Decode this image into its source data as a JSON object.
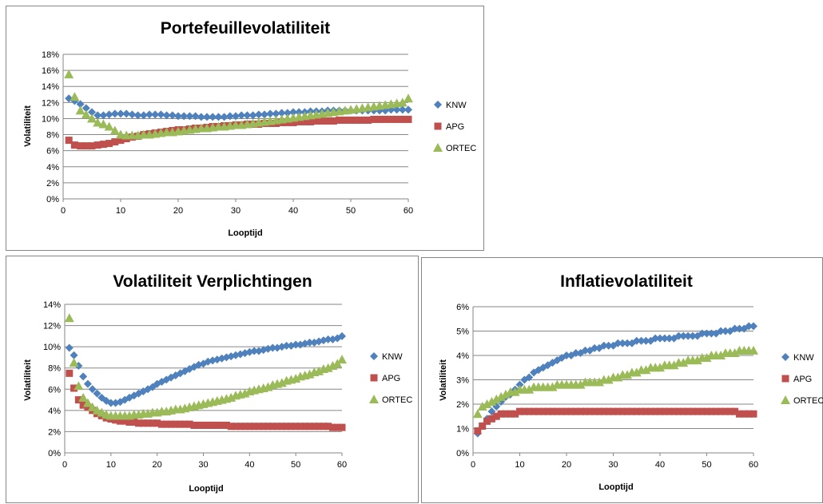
{
  "chart_data": [
    {
      "type": "scatter",
      "title": "Portefeuillevolatiliteit",
      "xlabel": "Looptijd",
      "ylabel": "Volatiliteit",
      "xlim": [
        0,
        60
      ],
      "ylim": [
        0,
        0.18
      ],
      "xticks": [
        "0",
        "10",
        "20",
        "30",
        "40",
        "50",
        "60"
      ],
      "yticks": [
        "0%",
        "2%",
        "4%",
        "6%",
        "8%",
        "10%",
        "12%",
        "14%",
        "16%",
        "18%"
      ],
      "grid": "horizontal",
      "legend_position": "right",
      "series": [
        {
          "name": "KNW",
          "color": "#4f81bd",
          "marker": "diamond",
          "values": [
            0.125,
            0.122,
            0.118,
            0.113,
            0.108,
            0.104,
            0.104,
            0.105,
            0.106,
            0.106,
            0.106,
            0.105,
            0.104,
            0.104,
            0.105,
            0.105,
            0.105,
            0.104,
            0.104,
            0.103,
            0.103,
            0.103,
            0.103,
            0.102,
            0.102,
            0.102,
            0.102,
            0.102,
            0.103,
            0.103,
            0.104,
            0.104,
            0.104,
            0.105,
            0.105,
            0.106,
            0.106,
            0.107,
            0.107,
            0.108,
            0.108,
            0.108,
            0.109,
            0.109,
            0.109,
            0.11,
            0.11,
            0.11,
            0.11,
            0.11,
            0.11,
            0.11,
            0.11,
            0.11,
            0.11,
            0.11,
            0.111,
            0.111,
            0.111,
            0.111
          ]
        },
        {
          "name": "APG",
          "color": "#c0504d",
          "marker": "square",
          "values": [
            0.073,
            0.067,
            0.066,
            0.066,
            0.066,
            0.067,
            0.068,
            0.069,
            0.071,
            0.073,
            0.075,
            0.077,
            0.078,
            0.08,
            0.081,
            0.082,
            0.083,
            0.084,
            0.085,
            0.086,
            0.086,
            0.087,
            0.088,
            0.088,
            0.089,
            0.09,
            0.09,
            0.091,
            0.091,
            0.092,
            0.092,
            0.093,
            0.093,
            0.093,
            0.094,
            0.094,
            0.094,
            0.095,
            0.095,
            0.095,
            0.096,
            0.096,
            0.096,
            0.097,
            0.097,
            0.097,
            0.097,
            0.098,
            0.098,
            0.098,
            0.098,
            0.098,
            0.098,
            0.099,
            0.099,
            0.099,
            0.099,
            0.099,
            0.099,
            0.099
          ]
        },
        {
          "name": "ORTEC",
          "color": "#9bbb59",
          "marker": "triangle",
          "values": [
            0.155,
            0.127,
            0.11,
            0.105,
            0.1,
            0.095,
            0.093,
            0.09,
            0.085,
            0.08,
            0.079,
            0.079,
            0.079,
            0.08,
            0.08,
            0.081,
            0.082,
            0.083,
            0.083,
            0.084,
            0.085,
            0.086,
            0.087,
            0.088,
            0.088,
            0.089,
            0.09,
            0.09,
            0.091,
            0.092,
            0.092,
            0.093,
            0.094,
            0.095,
            0.096,
            0.097,
            0.098,
            0.099,
            0.1,
            0.101,
            0.102,
            0.103,
            0.104,
            0.105,
            0.106,
            0.107,
            0.108,
            0.109,
            0.11,
            0.111,
            0.112,
            0.113,
            0.114,
            0.115,
            0.116,
            0.117,
            0.118,
            0.119,
            0.12,
            0.125
          ]
        }
      ]
    },
    {
      "type": "scatter",
      "title": "Volatiliteit Verplichtingen",
      "xlabel": "Looptijd",
      "ylabel": "Volatiliteit",
      "xlim": [
        0,
        60
      ],
      "ylim": [
        0,
        0.14
      ],
      "xticks": [
        "0",
        "10",
        "20",
        "30",
        "40",
        "50",
        "60"
      ],
      "yticks": [
        "0%",
        "2%",
        "4%",
        "6%",
        "8%",
        "10%",
        "12%",
        "14%"
      ],
      "grid": "horizontal",
      "legend_position": "right",
      "series": [
        {
          "name": "KNW",
          "color": "#4f81bd",
          "marker": "diamond",
          "values": [
            0.099,
            0.092,
            0.082,
            0.072,
            0.065,
            0.06,
            0.056,
            0.052,
            0.049,
            0.047,
            0.047,
            0.048,
            0.05,
            0.052,
            0.054,
            0.056,
            0.058,
            0.06,
            0.062,
            0.065,
            0.067,
            0.069,
            0.071,
            0.073,
            0.075,
            0.077,
            0.079,
            0.081,
            0.083,
            0.084,
            0.086,
            0.087,
            0.088,
            0.089,
            0.09,
            0.091,
            0.092,
            0.093,
            0.094,
            0.095,
            0.096,
            0.096,
            0.097,
            0.098,
            0.099,
            0.099,
            0.1,
            0.101,
            0.101,
            0.102,
            0.102,
            0.103,
            0.104,
            0.104,
            0.105,
            0.106,
            0.107,
            0.107,
            0.108,
            0.11
          ]
        },
        {
          "name": "APG",
          "color": "#c0504d",
          "marker": "square",
          "values": [
            0.075,
            0.061,
            0.05,
            0.045,
            0.043,
            0.04,
            0.037,
            0.035,
            0.033,
            0.032,
            0.031,
            0.03,
            0.03,
            0.029,
            0.029,
            0.028,
            0.028,
            0.028,
            0.028,
            0.028,
            0.027,
            0.027,
            0.027,
            0.027,
            0.027,
            0.027,
            0.027,
            0.026,
            0.026,
            0.026,
            0.026,
            0.026,
            0.026,
            0.026,
            0.026,
            0.025,
            0.025,
            0.025,
            0.025,
            0.025,
            0.025,
            0.025,
            0.025,
            0.025,
            0.025,
            0.025,
            0.025,
            0.025,
            0.025,
            0.025,
            0.025,
            0.025,
            0.025,
            0.025,
            0.025,
            0.025,
            0.025,
            0.024,
            0.024,
            0.024
          ]
        },
        {
          "name": "ORTEC",
          "color": "#9bbb59",
          "marker": "triangle",
          "values": [
            0.127,
            0.085,
            0.063,
            0.052,
            0.047,
            0.043,
            0.04,
            0.038,
            0.036,
            0.035,
            0.035,
            0.035,
            0.035,
            0.035,
            0.036,
            0.036,
            0.037,
            0.037,
            0.038,
            0.038,
            0.039,
            0.039,
            0.04,
            0.041,
            0.041,
            0.042,
            0.043,
            0.044,
            0.045,
            0.046,
            0.047,
            0.048,
            0.049,
            0.05,
            0.051,
            0.052,
            0.054,
            0.055,
            0.056,
            0.058,
            0.059,
            0.06,
            0.061,
            0.062,
            0.064,
            0.065,
            0.066,
            0.068,
            0.069,
            0.07,
            0.072,
            0.073,
            0.074,
            0.076,
            0.077,
            0.079,
            0.08,
            0.082,
            0.084,
            0.088
          ]
        }
      ]
    },
    {
      "type": "scatter",
      "title": "Inflatievolatiliteit",
      "xlabel": "Looptijd",
      "ylabel": "Volatiliteit",
      "xlim": [
        0,
        60
      ],
      "ylim": [
        0,
        0.06
      ],
      "xticks": [
        "0",
        "10",
        "20",
        "30",
        "40",
        "50",
        "60"
      ],
      "yticks": [
        "0%",
        "1%",
        "2%",
        "3%",
        "4%",
        "5%",
        "6%"
      ],
      "grid": "horizontal",
      "legend_position": "right",
      "series": [
        {
          "name": "KNW",
          "color": "#4f81bd",
          "marker": "diamond",
          "values": [
            0.008,
            0.011,
            0.014,
            0.017,
            0.019,
            0.021,
            0.023,
            0.024,
            0.026,
            0.028,
            0.03,
            0.031,
            0.033,
            0.034,
            0.035,
            0.036,
            0.037,
            0.038,
            0.039,
            0.04,
            0.04,
            0.041,
            0.041,
            0.042,
            0.042,
            0.043,
            0.043,
            0.044,
            0.044,
            0.044,
            0.045,
            0.045,
            0.045,
            0.045,
            0.046,
            0.046,
            0.046,
            0.046,
            0.047,
            0.047,
            0.047,
            0.047,
            0.047,
            0.048,
            0.048,
            0.048,
            0.048,
            0.048,
            0.049,
            0.049,
            0.049,
            0.049,
            0.05,
            0.05,
            0.05,
            0.051,
            0.051,
            0.051,
            0.052,
            0.052
          ]
        },
        {
          "name": "APG",
          "color": "#c0504d",
          "marker": "square",
          "values": [
            0.009,
            0.011,
            0.013,
            0.014,
            0.015,
            0.016,
            0.016,
            0.016,
            0.016,
            0.017,
            0.017,
            0.017,
            0.017,
            0.017,
            0.017,
            0.017,
            0.017,
            0.017,
            0.017,
            0.017,
            0.017,
            0.017,
            0.017,
            0.017,
            0.017,
            0.017,
            0.017,
            0.017,
            0.017,
            0.017,
            0.017,
            0.017,
            0.017,
            0.017,
            0.017,
            0.017,
            0.017,
            0.017,
            0.017,
            0.017,
            0.017,
            0.017,
            0.017,
            0.017,
            0.017,
            0.017,
            0.017,
            0.017,
            0.017,
            0.017,
            0.017,
            0.017,
            0.017,
            0.017,
            0.017,
            0.017,
            0.016,
            0.016,
            0.016,
            0.016
          ]
        },
        {
          "name": "ORTEC",
          "color": "#9bbb59",
          "marker": "triangle",
          "values": [
            0.016,
            0.019,
            0.02,
            0.021,
            0.022,
            0.023,
            0.024,
            0.025,
            0.025,
            0.026,
            0.026,
            0.026,
            0.027,
            0.027,
            0.027,
            0.027,
            0.027,
            0.028,
            0.028,
            0.028,
            0.028,
            0.028,
            0.028,
            0.029,
            0.029,
            0.029,
            0.029,
            0.03,
            0.03,
            0.031,
            0.031,
            0.032,
            0.032,
            0.033,
            0.033,
            0.034,
            0.034,
            0.035,
            0.035,
            0.035,
            0.036,
            0.036,
            0.036,
            0.037,
            0.037,
            0.038,
            0.038,
            0.038,
            0.039,
            0.039,
            0.04,
            0.04,
            0.04,
            0.041,
            0.041,
            0.041,
            0.042,
            0.042,
            0.042,
            0.042
          ]
        }
      ]
    }
  ]
}
